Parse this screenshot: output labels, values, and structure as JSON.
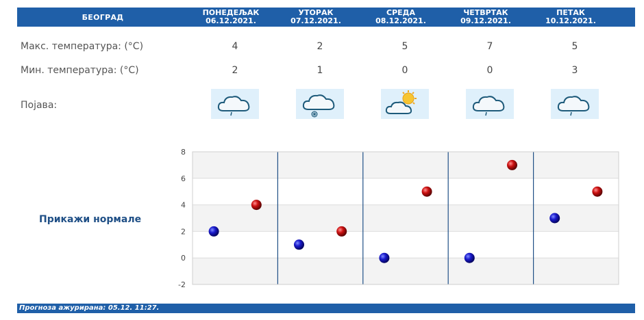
{
  "header": {
    "city": "БЕОГРАД",
    "days": [
      {
        "name": "ПОНЕДЕЉАК",
        "date": "06.12.2021."
      },
      {
        "name": "УТОРАК",
        "date": "07.12.2021."
      },
      {
        "name": "СРЕДА",
        "date": "08.12.2021."
      },
      {
        "name": "ЧЕТВРТАК",
        "date": "09.12.2021."
      },
      {
        "name": "ПЕТАК",
        "date": "10.12.2021."
      }
    ]
  },
  "rows": {
    "max_label": "Макс. температура: (°C)",
    "min_label": "Мин. температура: (°C)",
    "phenomenon_label": "Појава:"
  },
  "max_temps": [
    "4",
    "2",
    "5",
    "7",
    "5"
  ],
  "min_temps": [
    "2",
    "1",
    "0",
    "0",
    "3"
  ],
  "icons": [
    "cloud-rain-icon",
    "cloud-snow-icon",
    "partly-cloudy-sun-icon",
    "cloud-rain-icon",
    "cloud-rain-icon"
  ],
  "normals_link": "Прикажи нормале",
  "footer": "Прогноза ажурирана:  05.12. 11:27.",
  "chart_data": {
    "type": "scatter",
    "ylim": [
      -2,
      8
    ],
    "yticks": [
      "8",
      "6",
      "4",
      "2",
      "0",
      "-2"
    ],
    "categories": [
      "06.12.2021.",
      "07.12.2021.",
      "08.12.2021.",
      "09.12.2021.",
      "10.12.2021."
    ],
    "series": [
      {
        "color": "#1a1acc",
        "values": [
          2,
          1,
          0,
          0,
          3
        ]
      },
      {
        "color": "#cc1111",
        "values": [
          4,
          2,
          5,
          7,
          5
        ]
      }
    ]
  }
}
